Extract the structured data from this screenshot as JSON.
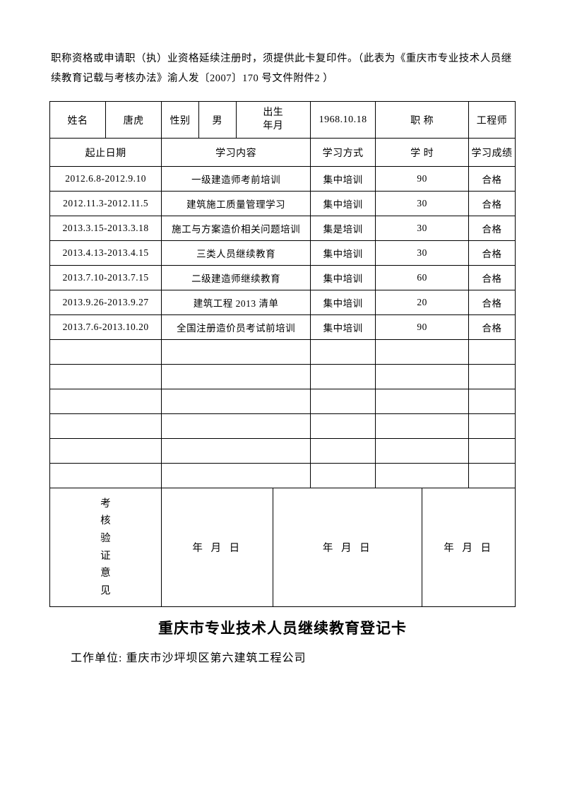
{
  "header_text": "职称资格或申请职（执）业资格延续注册时，须提供此卡复印件。（此表为《重庆市专业技术人员继续教育记载与考核办法》渝人发〔2007〕170 号文件附件2 ）",
  "personal": {
    "name_label": "姓名",
    "name_value": "唐虎",
    "gender_label": "性别",
    "gender_value": "男",
    "birth_label_1": "出生",
    "birth_label_2": "年月",
    "birth_value": "1968.10.18",
    "title_label": "职 称",
    "title_value": "工程师"
  },
  "headers": {
    "date_range": "起止日期",
    "content": "学习内容",
    "method": "学习方式",
    "hours": "学 时",
    "result": "学习成绩"
  },
  "rows": [
    {
      "date": "2012.6.8-2012.9.10",
      "content": "一级建造师考前培训",
      "method": "集中培训",
      "hours": "90",
      "result": "合格"
    },
    {
      "date": "2012.11.3-2012.11.5",
      "content": "建筑施工质量管理学习",
      "method": "集中培训",
      "hours": "30",
      "result": "合格"
    },
    {
      "date": "2013.3.15-2013.3.18",
      "content": "施工与方案造价相关问题培训",
      "method": "集是培训",
      "hours": "30",
      "result": "合格"
    },
    {
      "date": "2013.4.13-2013.4.15",
      "content": "三类人员继续教育",
      "method": "集中培训",
      "hours": "30",
      "result": "合格"
    },
    {
      "date": "2013.7.10-2013.7.15",
      "content": "二级建造师继续教育",
      "method": "集中培训",
      "hours": "60",
      "result": "合格"
    },
    {
      "date": "2013.9.26-2013.9.27",
      "content": "建筑工程 2013 清单",
      "method": "集中培训",
      "hours": "20",
      "result": "合格"
    },
    {
      "date": "2013.7.6-2013.10.20",
      "content": "全国注册造价员考试前培训",
      "method": "集中培训",
      "hours": "90",
      "result": "合格"
    }
  ],
  "verify": {
    "label_1": "考",
    "label_2": "核",
    "label_3": "验",
    "label_4": "证",
    "label_5": "意",
    "label_6": "见",
    "date_text": "年 月 日"
  },
  "title": "重庆市专业技术人员继续教育登记卡",
  "workunit_label": "工作单位:",
  "workunit_value": "重庆市沙坪坝区第六建筑工程公司",
  "empty_row_count": 6,
  "colors": {
    "text": "#000000",
    "border": "#000000",
    "background": "#ffffff"
  }
}
